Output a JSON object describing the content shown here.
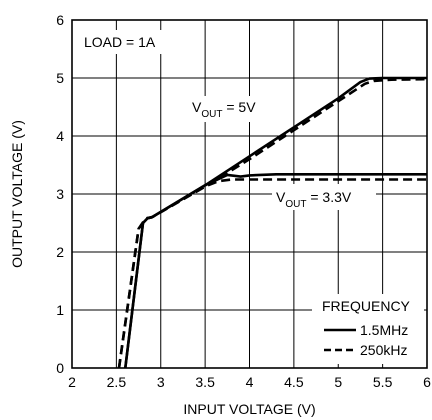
{
  "chart_data": {
    "type": "line",
    "xlabel": "INPUT VOLTAGE (V)",
    "ylabel": "OUTPUT VOLTAGE (V)",
    "xlim": [
      2,
      6
    ],
    "ylim": [
      0,
      6
    ],
    "x_ticks": [
      "2",
      "2.5",
      "3",
      "3.5",
      "4",
      "4.5",
      "5",
      "5.5",
      "6"
    ],
    "y_ticks": [
      "0",
      "1",
      "2",
      "3",
      "4",
      "5",
      "6"
    ],
    "grid": true,
    "annotations": {
      "load": "LOAD = 1A",
      "vout5_main": "V",
      "vout5_sub": "OUT",
      "vout5_val": " = 5V",
      "vout33_main": "V",
      "vout33_sub": "OUT",
      "vout33_val": " = 3.3V"
    },
    "legend": {
      "title": "FREQUENCY",
      "position": "bottom-right",
      "entries": [
        "1.5MHz",
        "250kHz"
      ]
    },
    "series": [
      {
        "name": "1.5MHz",
        "group": "VOUT = 5V",
        "style": "solid",
        "x": [
          2.6,
          2.8,
          2.85,
          2.9,
          3.5,
          4.0,
          4.5,
          5.0,
          5.25,
          5.35,
          5.5,
          6.0
        ],
        "y": [
          0,
          2.5,
          2.58,
          2.6,
          3.15,
          3.65,
          4.15,
          4.65,
          4.93,
          4.99,
          5.0,
          5.0
        ]
      },
      {
        "name": "250kHz",
        "group": "VOUT = 5V",
        "style": "dashed",
        "x": [
          2.53,
          2.75,
          2.83,
          2.9,
          3.5,
          4.0,
          4.5,
          5.0,
          5.3,
          5.4,
          5.6,
          6.0
        ],
        "y": [
          0,
          2.4,
          2.58,
          2.6,
          3.13,
          3.6,
          4.1,
          4.6,
          4.9,
          4.95,
          4.97,
          4.98
        ]
      },
      {
        "name": "1.5MHz",
        "group": "VOUT = 3.3V",
        "style": "solid",
        "x": [
          2.6,
          2.8,
          2.85,
          2.9,
          3.5,
          3.75,
          3.9,
          4.0,
          4.3,
          6.0
        ],
        "y": [
          0,
          2.5,
          2.58,
          2.6,
          3.15,
          3.33,
          3.3,
          3.32,
          3.34,
          3.34
        ]
      },
      {
        "name": "250kHz",
        "group": "VOUT = 3.3V",
        "style": "dashed",
        "x": [
          2.53,
          2.75,
          2.83,
          2.9,
          3.5,
          3.65,
          3.8,
          4.0,
          6.0
        ],
        "y": [
          0,
          2.4,
          2.58,
          2.6,
          3.13,
          3.22,
          3.25,
          3.25,
          3.25
        ]
      }
    ]
  }
}
